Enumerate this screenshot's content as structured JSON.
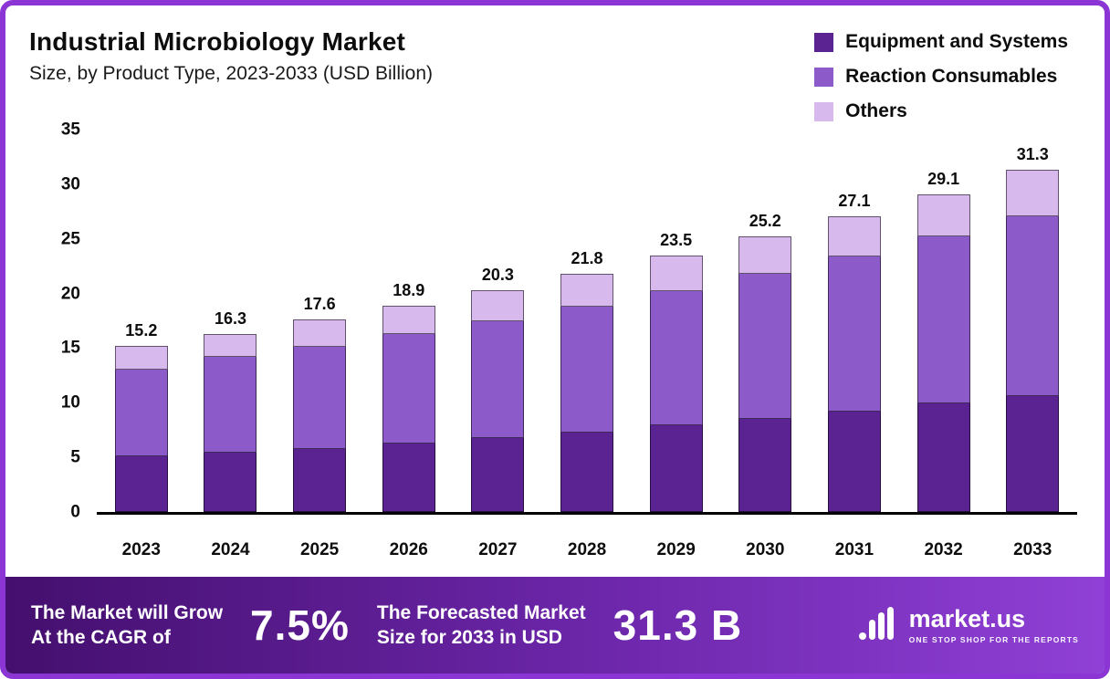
{
  "header": {
    "title": "Industrial Microbiology Market",
    "subtitle": "Size, by Product Type, 2023-2033 (USD Billion)"
  },
  "chart_data": {
    "type": "bar",
    "stacked": true,
    "title": "Industrial Microbiology Market Size, by Product Type, 2023-2033 (USD Billion)",
    "xlabel": "",
    "ylabel": "",
    "ylim": [
      0,
      35
    ],
    "yticks": [
      0,
      5,
      10,
      15,
      20,
      25,
      30,
      35
    ],
    "grid": false,
    "legend_position": "top-right",
    "categories": [
      "2023",
      "2024",
      "2025",
      "2026",
      "2027",
      "2028",
      "2029",
      "2030",
      "2031",
      "2032",
      "2033"
    ],
    "series": [
      {
        "name": "Equipment and Systems",
        "color": "#5a2391",
        "values": [
          5.1,
          5.4,
          5.8,
          6.3,
          6.8,
          7.3,
          7.9,
          8.5,
          9.2,
          9.9,
          10.6
        ]
      },
      {
        "name": "Reaction Consumables",
        "color": "#8d5bc9",
        "values": [
          7.9,
          8.8,
          9.3,
          10.0,
          10.7,
          11.5,
          12.3,
          13.3,
          14.2,
          15.3,
          16.5
        ]
      },
      {
        "name": "Others",
        "color": "#d7b9ee",
        "values": [
          2.2,
          2.1,
          2.5,
          2.6,
          2.8,
          3.0,
          3.3,
          3.4,
          3.7,
          3.9,
          4.2
        ]
      }
    ],
    "totals": [
      15.2,
      16.3,
      17.6,
      18.9,
      20.3,
      21.8,
      23.5,
      25.2,
      27.1,
      29.1,
      31.3
    ]
  },
  "footer": {
    "cagr_label_line1": "The Market will Grow",
    "cagr_label_line2": "At the CAGR of",
    "cagr_value": "7.5%",
    "forecast_label_line1": "The Forecasted Market",
    "forecast_label_line2": "Size for 2033 in USD",
    "forecast_value": "31.3 B",
    "brand_name": "market.us",
    "brand_tagline": "ONE STOP SHOP FOR THE REPORTS"
  },
  "colors": {
    "frame_border": "#8a35d4",
    "axis": "#000000",
    "banner_gradient_start": "#440f6e",
    "banner_gradient_end": "#9040d6"
  }
}
